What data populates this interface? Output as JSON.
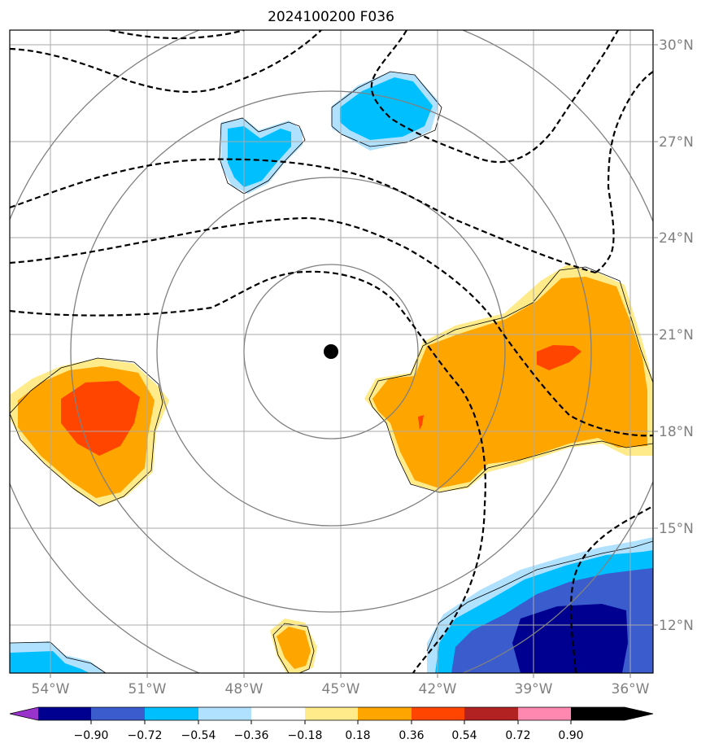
{
  "title": "2024100200 F036",
  "map": {
    "lat_labels": [
      "30°N",
      "27°N",
      "24°N",
      "21°N",
      "18°N",
      "15°N",
      "12°N"
    ],
    "lon_labels": [
      "54°W",
      "51°W",
      "48°W",
      "45°W",
      "42°W",
      "39°W",
      "36°W"
    ],
    "center_marker": {
      "lat": 20.5,
      "lon": -45.3
    },
    "range_rings": 4,
    "gridlines": true,
    "contour_style": "dashed black"
  },
  "colorbar": {
    "extend": "both",
    "colors": [
      "#9933cc",
      "#000090",
      "#3a5ccc",
      "#00bfff",
      "#b0e2ff",
      "#ffffff",
      "#ffeb8a",
      "#ffa500",
      "#ff4500",
      "#b22222",
      "#ff88b0"
    ],
    "tick_labels": [
      "−0.90",
      "−0.72",
      "−0.54",
      "−0.36",
      "−0.18",
      "0.18",
      "0.36",
      "0.54",
      "0.72",
      "0.90"
    ]
  }
}
